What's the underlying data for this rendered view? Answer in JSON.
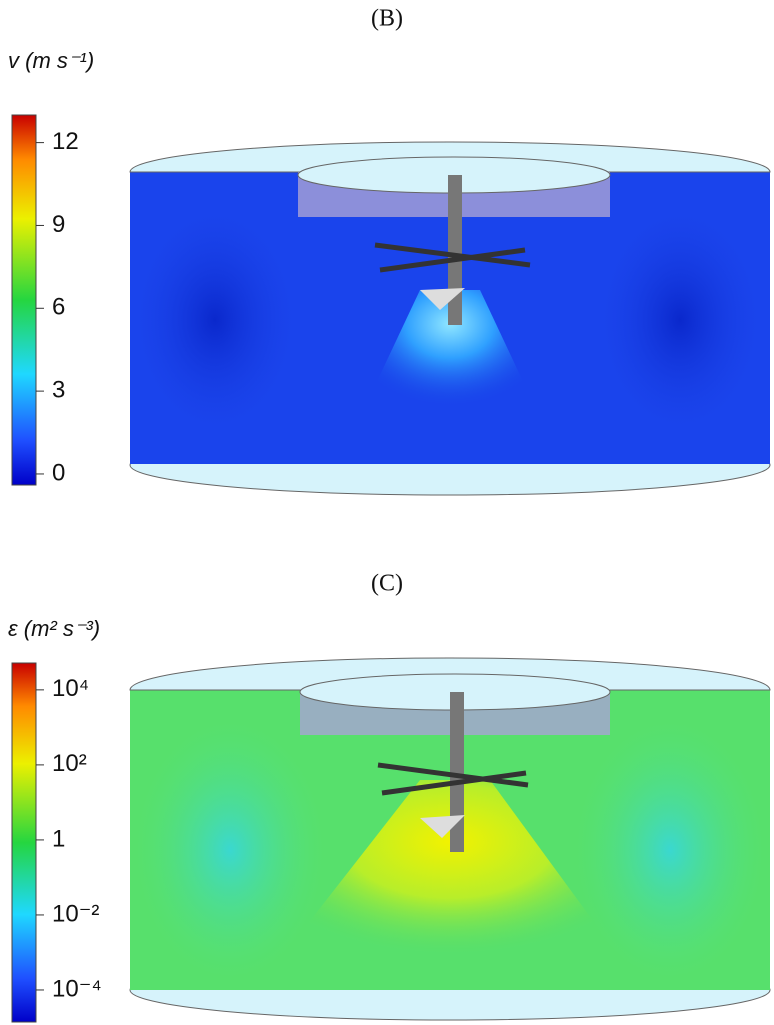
{
  "chart_data": [
    {
      "type": "contour",
      "title": "(B)",
      "colorbar": {
        "label": "v (m s⁻¹)",
        "lim": [
          -0.4,
          13
        ],
        "ticks": [
          0,
          3,
          6,
          9,
          12
        ],
        "log": false
      }
    },
    {
      "type": "contour",
      "title": "(C)",
      "colorbar": {
        "label": "ε (m² s⁻³)",
        "lim": [
          1.4e-05,
          52000
        ],
        "log": true,
        "ticks": [
          {
            "value": 0.0001,
            "label": "10⁻⁴"
          },
          {
            "value": 0.01,
            "label": "10⁻²"
          },
          1,
          {
            "value": 100,
            "label": "10²"
          },
          {
            "value": 10000,
            "label": "10⁴"
          }
        ]
      }
    }
  ]
}
